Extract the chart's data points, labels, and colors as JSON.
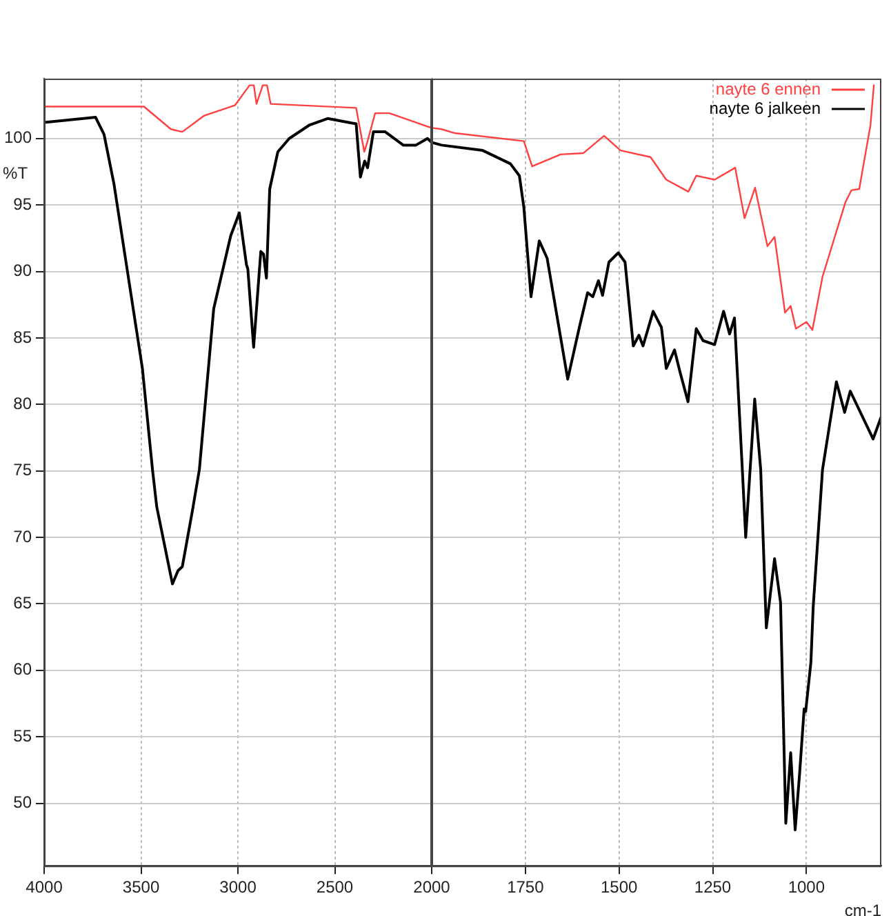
{
  "chart_data": [
    {
      "type": "line",
      "ylabel": "%T",
      "xlim": [
        4000,
        2000
      ],
      "xticks": [
        4000,
        3500,
        3000,
        2500,
        2000
      ],
      "ylim": [
        45.3,
        104.5
      ],
      "yticks": [
        50,
        55,
        60,
        65,
        70,
        75,
        80,
        85,
        90,
        95,
        100
      ],
      "grid": true,
      "marker": "none",
      "line_style": "solid",
      "series": [
        {
          "color": "#ff4040",
          "x": [
            4000,
            3485,
            3346,
            3287,
            3176,
            3015,
            2940,
            2918,
            2904,
            2872,
            2850,
            2831,
            2390,
            2348,
            2331,
            2292,
            2218,
            2022,
            2000
          ],
          "values": [
            102.4,
            102.4,
            100.7,
            100.5,
            101.7,
            102.5,
            104.0,
            104.0,
            102.6,
            104.0,
            104.0,
            102.6,
            102.3,
            99.0,
            99.8,
            101.9,
            101.9,
            100.9,
            100.8
          ]
        },
        {
          "color": "#000000",
          "x": [
            4000,
            3735,
            3691,
            3640,
            3493,
            3441,
            3419,
            3338,
            3309,
            3287,
            3235,
            3199,
            3125,
            3037,
            2993,
            2956,
            2949,
            2919,
            2882,
            2868,
            2853,
            2836,
            2794,
            2735,
            2632,
            2537,
            2390,
            2368,
            2346,
            2331,
            2301,
            2240,
            2147,
            2081,
            2022,
            2000
          ],
          "values": [
            101.2,
            101.6,
            100.3,
            96.6,
            82.7,
            75.1,
            72.3,
            66.5,
            67.5,
            67.8,
            72.0,
            75.1,
            87.2,
            92.7,
            94.4,
            90.5,
            90.2,
            84.3,
            91.5,
            91.3,
            89.5,
            96.2,
            99.0,
            100.0,
            101.0,
            101.5,
            101.1,
            97.1,
            98.3,
            97.8,
            100.5,
            100.5,
            99.5,
            99.5,
            100.0,
            99.7
          ]
        }
      ]
    },
    {
      "type": "line",
      "xlabel": "cm-1",
      "xlim": [
        2000,
        800
      ],
      "xticks": [
        1750,
        1500,
        1250,
        1000
      ],
      "ylim": [
        45.3,
        104.5
      ],
      "yticks": [
        50,
        55,
        60,
        65,
        70,
        75,
        80,
        85,
        90,
        95,
        100
      ],
      "tick_labels": "x",
      "grid": true,
      "legend": "top right",
      "marker": "none",
      "line_style": "solid",
      "series": [
        {
          "name": "nayte 6 ennen",
          "color": "#ff4040",
          "x": [
            2000,
            1974,
            1938,
            1754,
            1732,
            1656,
            1595,
            1540,
            1496,
            1416,
            1374,
            1315,
            1294,
            1245,
            1190,
            1165,
            1137,
            1104,
            1085,
            1057,
            1042,
            1028,
            1000,
            984,
            957,
            896,
            880,
            859,
            829,
            820
          ],
          "values": [
            100.8,
            100.7,
            100.4,
            99.8,
            97.9,
            98.8,
            98.9,
            100.2,
            99.1,
            98.6,
            96.9,
            96.0,
            97.2,
            96.9,
            97.8,
            94.0,
            96.3,
            91.9,
            92.6,
            86.9,
            87.4,
            85.7,
            86.2,
            85.6,
            89.6,
            95.2,
            96.1,
            96.2,
            101.0,
            104.0
          ]
        },
        {
          "name": "nayte 6 jalkeen",
          "color": "#000000",
          "x": [
            2000,
            1974,
            1864,
            1790,
            1766,
            1754,
            1735,
            1713,
            1692,
            1637,
            1606,
            1584,
            1570,
            1555,
            1544,
            1527,
            1502,
            1484,
            1462,
            1447,
            1436,
            1409,
            1387,
            1374,
            1352,
            1337,
            1316,
            1294,
            1276,
            1245,
            1221,
            1205,
            1192,
            1171,
            1162,
            1138,
            1122,
            1107,
            1085,
            1069,
            1055,
            1042,
            1030,
            1018,
            1006,
            1002,
            988,
            982,
            957,
            920,
            898,
            883,
            822,
            800
          ],
          "values": [
            99.7,
            99.5,
            99.1,
            98.1,
            97.2,
            94.8,
            88.1,
            92.3,
            91.0,
            81.9,
            85.8,
            88.4,
            88.1,
            89.3,
            88.2,
            90.7,
            91.4,
            90.7,
            84.4,
            85.2,
            84.4,
            87.0,
            85.8,
            82.7,
            84.1,
            82.4,
            80.2,
            85.7,
            84.8,
            84.5,
            87.0,
            85.3,
            86.5,
            75.1,
            70.0,
            80.4,
            75.1,
            63.2,
            68.4,
            65.1,
            48.5,
            53.8,
            48.0,
            52.3,
            57.1,
            56.9,
            60.6,
            64.7,
            75.1,
            81.7,
            79.4,
            81.0,
            77.4,
            79.1
          ]
        }
      ]
    }
  ]
}
